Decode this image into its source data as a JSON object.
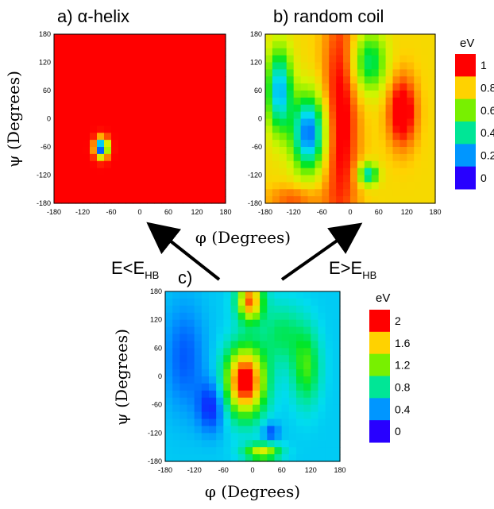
{
  "chart_data": [
    {
      "type": "heatmap",
      "panel": "a",
      "title": "a) α-helix",
      "xlabel": "φ (Degrees)",
      "ylabel": "ψ (Degrees)",
      "xlim": [
        -180,
        180
      ],
      "ylim": [
        -180,
        180
      ],
      "xticks": [
        "-180",
        "-120",
        "-60",
        "0",
        "60",
        "120",
        "180"
      ],
      "yticks": [
        "180",
        "120",
        "60",
        "0",
        "-60",
        "-120",
        "-180"
      ],
      "background_value_eV": 1.0,
      "minimum": {
        "phi": -80,
        "psi": -62,
        "value_eV": 0.0
      },
      "colorbar": null
    },
    {
      "type": "heatmap",
      "panel": "b",
      "title": "b) random coil",
      "xlabel": "φ (Degrees)",
      "ylabel": "",
      "xlim": [
        -180,
        180
      ],
      "ylim": [
        -180,
        180
      ],
      "xticks": [
        "-180",
        "-120",
        "-60",
        "0",
        "60",
        "120",
        "180"
      ],
      "yticks": [
        "180",
        "120",
        "60",
        "0",
        "-60",
        "-120",
        "-180"
      ],
      "minima": [
        {
          "phi": -85,
          "psi": -55,
          "value_eV": 0.05
        },
        {
          "phi": 38,
          "psi": -115,
          "value_eV": 0.1
        }
      ],
      "maxima": [
        {
          "phi": 110,
          "psi": 15,
          "value_eV": 0.9
        },
        {
          "phi": -20,
          "psi": 0,
          "value_eV": 1.0
        }
      ],
      "colorbar": {
        "title": "eV",
        "ticks": [
          "1",
          "0.8",
          "0.6",
          "0.4",
          "0.2",
          "0"
        ],
        "range": [
          0,
          1
        ]
      }
    },
    {
      "type": "heatmap",
      "panel": "c",
      "title": "c)",
      "xlabel": "φ (Degrees)",
      "ylabel": "ψ (Degrees)",
      "xlim": [
        -180,
        180
      ],
      "ylim": [
        -180,
        180
      ],
      "xticks": [
        "-180",
        "-120",
        "-60",
        "0",
        "60",
        "120",
        "180"
      ],
      "yticks": [
        "180",
        "120",
        "60",
        "0",
        "-60",
        "-120",
        "-180"
      ],
      "minima": [
        {
          "phi": -85,
          "psi": -65,
          "value_eV": 0.0
        },
        {
          "phi": 38,
          "psi": -118,
          "value_eV": 0.2
        }
      ],
      "maxima": [
        {
          "phi": -15,
          "psi": -10,
          "value_eV": 2.0
        },
        {
          "phi": 110,
          "psi": 20,
          "value_eV": 1.1
        }
      ],
      "colorbar": {
        "title": "eV",
        "ticks": [
          "2",
          "1.6",
          "1.2",
          "0.8",
          "0.4",
          "0"
        ],
        "range": [
          0,
          2
        ]
      }
    }
  ],
  "arrows": {
    "left": {
      "text": "E<E",
      "sub": "HB"
    },
    "right": {
      "text": "E>E",
      "sub": "HB"
    }
  }
}
